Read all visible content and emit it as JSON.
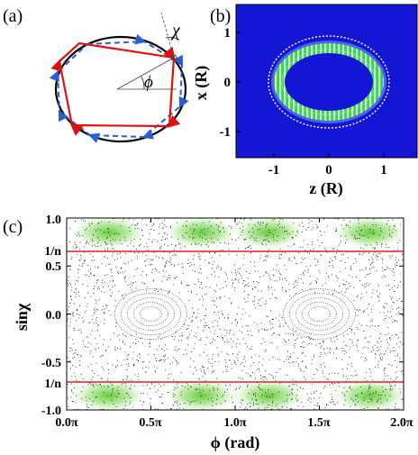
{
  "panels": {
    "a": {
      "label": "(a)",
      "chi": "χ",
      "phi": "ϕ"
    },
    "b": {
      "label": "(b)",
      "xlabel": "z (R)",
      "ylabel": "x (R)",
      "xticks": [
        "-1",
        "0",
        "1"
      ],
      "yticks": [
        "1",
        "0",
        "-1"
      ]
    },
    "c": {
      "label": "(c)",
      "xlabel": "ϕ (rad)",
      "ylabel": "sinχ",
      "xticks": [
        "0.0π",
        "0.5π",
        "1.0π",
        "1.5π",
        "2.0π"
      ],
      "yticks": [
        "1.0",
        "0.5",
        "0.0",
        "-0.5",
        "-1.0"
      ],
      "yticks_extra": [
        "1/n",
        "1/n"
      ]
    }
  },
  "colors": {
    "ray_solid": "#e11010",
    "ray_dashed": "#2a5fd0",
    "field_bg": "#1515d6",
    "critical_line": "#e0201c",
    "island_green": "#7ed957"
  },
  "chart_data": [
    {
      "type": "heatmap",
      "xlabel": "z (R)",
      "ylabel": "x (R)",
      "xlim": [
        -1.7,
        1.7
      ],
      "ylim": [
        -1.5,
        1.5
      ],
      "xticks": [
        -1,
        0,
        1
      ],
      "yticks": [
        1,
        0,
        -1
      ],
      "mode_shape": "whispering-gallery ring, semi-axes ≈ 1.1 (z) × 0.85 (x)"
    },
    {
      "type": "scatter",
      "xlabel": "ϕ (rad)",
      "ylabel": "sinχ",
      "xlim": [
        0,
        2
      ],
      "ylim": [
        -1,
        1
      ],
      "xticks": [
        0,
        0.5,
        1.0,
        1.5,
        2.0
      ],
      "yticks": [
        1.0,
        0.5,
        0.0,
        -0.5,
        -1.0
      ],
      "critical_lines": [
        0.7,
        -0.7
      ],
      "island_centers": [
        {
          "phi": 0.25,
          "sinchi": 0.85
        },
        {
          "phi": 0.8,
          "sinchi": 0.85
        },
        {
          "phi": 1.2,
          "sinchi": 0.85
        },
        {
          "phi": 1.8,
          "sinchi": 0.85
        },
        {
          "phi": 0.25,
          "sinchi": -0.85
        },
        {
          "phi": 0.8,
          "sinchi": -0.85
        },
        {
          "phi": 1.2,
          "sinchi": -0.85
        },
        {
          "phi": 1.8,
          "sinchi": -0.85
        }
      ],
      "stable_orbit_centers": [
        {
          "phi": 0.5,
          "sinchi": 0.0
        },
        {
          "phi": 1.5,
          "sinchi": 0.0
        }
      ]
    }
  ]
}
